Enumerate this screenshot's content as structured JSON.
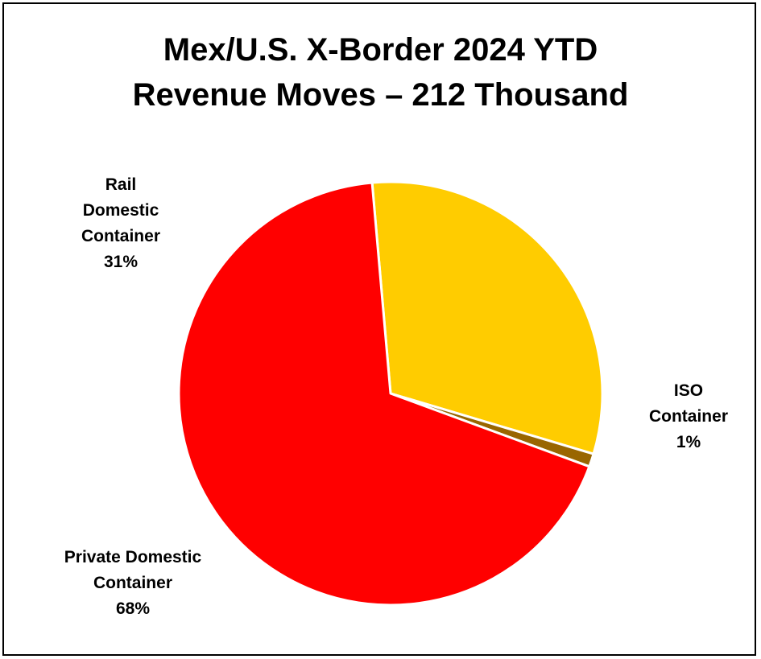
{
  "chart_data": {
    "type": "pie",
    "title_lines": [
      "Mex/U.S. X-Border 2024 YTD",
      "Revenue Moves – 212 Thousand"
    ],
    "slices": [
      {
        "name_lines": [
          "Rail",
          "Domestic",
          "Container"
        ],
        "percent_label": "31%",
        "value": 31,
        "color": "#FFCC00"
      },
      {
        "name_lines": [
          "ISO",
          "Container"
        ],
        "percent_label": "1%",
        "value": 1,
        "color": "#996600"
      },
      {
        "name_lines": [
          "Private Domestic",
          "Container"
        ],
        "percent_label": "68%",
        "value": 68,
        "color": "#FF0000"
      }
    ],
    "start_angle_deg": -5,
    "slice_border_color": "#FFFFFF",
    "legend": "none"
  }
}
